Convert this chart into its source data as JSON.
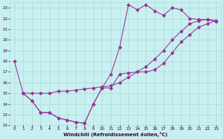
{
  "xlabel": "Windchill (Refroidissement éolien,°C)",
  "background_color": "#c8f0f0",
  "grid_color": "#a8d8d8",
  "line_color": "#993399",
  "xlim": [
    -0.5,
    23.5
  ],
  "ylim": [
    12,
    23.5
  ],
  "xticks": [
    0,
    1,
    2,
    3,
    4,
    5,
    6,
    7,
    8,
    9,
    10,
    11,
    12,
    13,
    14,
    15,
    16,
    17,
    18,
    19,
    20,
    21,
    22,
    23
  ],
  "yticks": [
    12,
    13,
    14,
    15,
    16,
    17,
    18,
    19,
    20,
    21,
    22,
    23
  ],
  "line1_x": [
    0,
    1,
    2,
    3,
    4,
    5,
    6,
    7,
    8,
    9,
    10,
    11,
    12,
    13,
    14,
    15,
    16,
    17,
    18,
    19,
    20,
    21,
    22,
    23
  ],
  "line1_y": [
    18,
    15,
    14.3,
    13.2,
    13.2,
    12.7,
    12.5,
    12.3,
    12.2,
    14.0,
    15.5,
    16.8,
    19.3,
    23.3,
    22.8,
    23.3,
    22.7,
    22.3,
    23.0,
    22.8,
    22.0,
    21.9,
    21.9,
    21.7
  ],
  "line2_x": [
    1,
    2,
    3,
    4,
    5,
    6,
    7,
    8,
    9,
    10,
    11,
    12,
    13,
    14,
    15,
    16,
    17,
    18,
    19,
    20,
    21,
    22,
    23
  ],
  "line2_y": [
    15,
    15,
    15,
    15,
    15.2,
    15.2,
    15.3,
    15.4,
    15.5,
    15.6,
    15.7,
    16.0,
    16.5,
    17.0,
    17.5,
    18.2,
    19.0,
    20.0,
    20.8,
    21.5,
    21.8,
    21.9,
    21.8
  ],
  "line3_x": [
    1,
    2,
    3,
    4,
    5,
    6,
    7,
    8,
    9,
    10,
    11,
    12,
    13,
    14,
    15,
    16,
    17,
    18,
    19,
    20,
    21,
    22,
    23
  ],
  "line3_y": [
    15,
    14.3,
    13.2,
    13.2,
    12.7,
    12.5,
    12.3,
    12.2,
    14.0,
    15.5,
    15.5,
    16.8,
    16.9,
    17.0,
    17.0,
    17.2,
    17.8,
    18.8,
    19.8,
    20.5,
    21.2,
    21.5,
    21.8
  ]
}
